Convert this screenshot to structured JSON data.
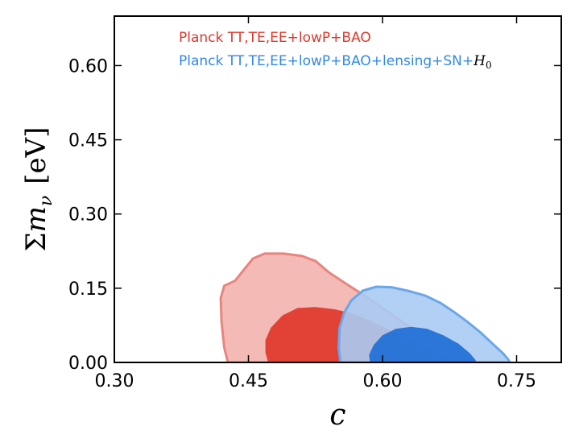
{
  "chart_data": {
    "type": "area",
    "title": "",
    "xlabel": "c",
    "ylabel": "Σm_ν [eV]",
    "ylabel_parts": {
      "sigma": "Σ",
      "m": "m",
      "sub": "ν",
      "unit": "[eV]"
    },
    "xlim": [
      0.3,
      0.8
    ],
    "ylim": [
      0.0,
      0.7
    ],
    "xticks": [
      0.3,
      0.45,
      0.6,
      0.75
    ],
    "xtick_labels": [
      "0.30",
      "0.45",
      "0.60",
      "0.75"
    ],
    "yticks": [
      0.0,
      0.15,
      0.3,
      0.45,
      0.6
    ],
    "ytick_labels": [
      "0.00",
      "0.15",
      "0.30",
      "0.45",
      "0.60"
    ],
    "grid": false,
    "legend_position": "top",
    "series": [
      {
        "name": "Planck TT,TE,EE+lowP+BAO",
        "color_outer": "#f2b2ae",
        "color_inner": "#e0372a",
        "edge_color": "#e8857e",
        "label_color": "#e0372a",
        "contour_95": [
          [
            0.427,
            0.0
          ],
          [
            0.423,
            0.03
          ],
          [
            0.42,
            0.08
          ],
          [
            0.419,
            0.13
          ],
          [
            0.423,
            0.155
          ],
          [
            0.435,
            0.165
          ],
          [
            0.446,
            0.19
          ],
          [
            0.455,
            0.21
          ],
          [
            0.468,
            0.22
          ],
          [
            0.49,
            0.22
          ],
          [
            0.51,
            0.215
          ],
          [
            0.525,
            0.205
          ],
          [
            0.54,
            0.182
          ],
          [
            0.56,
            0.158
          ],
          [
            0.58,
            0.135
          ],
          [
            0.6,
            0.11
          ],
          [
            0.62,
            0.085
          ],
          [
            0.64,
            0.06
          ],
          [
            0.66,
            0.038
          ],
          [
            0.68,
            0.02
          ],
          [
            0.695,
            0.008
          ],
          [
            0.7,
            0.0
          ]
        ],
        "contour_68": [
          [
            0.472,
            0.0
          ],
          [
            0.469,
            0.02
          ],
          [
            0.469,
            0.045
          ],
          [
            0.475,
            0.07
          ],
          [
            0.488,
            0.095
          ],
          [
            0.505,
            0.11
          ],
          [
            0.525,
            0.112
          ],
          [
            0.545,
            0.108
          ],
          [
            0.565,
            0.1
          ],
          [
            0.585,
            0.085
          ],
          [
            0.605,
            0.068
          ],
          [
            0.625,
            0.05
          ],
          [
            0.645,
            0.032
          ],
          [
            0.665,
            0.016
          ],
          [
            0.68,
            0.005
          ],
          [
            0.685,
            0.0
          ]
        ]
      },
      {
        "name": "Planck TT,TE,EE+lowP+BAO+lensing+SN+",
        "name_math": "H",
        "name_math_sub": "0",
        "color_outer": "#a8cbf3",
        "color_inner": "#1f6fd6",
        "edge_color": "#6aa6ea",
        "label_color": "#2f89e8",
        "contour_95": [
          [
            0.553,
            0.0
          ],
          [
            0.551,
            0.03
          ],
          [
            0.552,
            0.07
          ],
          [
            0.557,
            0.1
          ],
          [
            0.565,
            0.125
          ],
          [
            0.578,
            0.145
          ],
          [
            0.593,
            0.153
          ],
          [
            0.61,
            0.152
          ],
          [
            0.628,
            0.145
          ],
          [
            0.648,
            0.135
          ],
          [
            0.665,
            0.12
          ],
          [
            0.68,
            0.102
          ],
          [
            0.695,
            0.082
          ],
          [
            0.71,
            0.06
          ],
          [
            0.723,
            0.038
          ],
          [
            0.735,
            0.018
          ],
          [
            0.741,
            0.005
          ],
          [
            0.742,
            0.0
          ]
        ],
        "contour_68": [
          [
            0.586,
            0.0
          ],
          [
            0.585,
            0.015
          ],
          [
            0.59,
            0.035
          ],
          [
            0.6,
            0.055
          ],
          [
            0.615,
            0.068
          ],
          [
            0.632,
            0.072
          ],
          [
            0.65,
            0.068
          ],
          [
            0.668,
            0.055
          ],
          [
            0.685,
            0.038
          ],
          [
            0.698,
            0.018
          ],
          [
            0.704,
            0.005
          ],
          [
            0.705,
            0.0
          ]
        ]
      }
    ]
  }
}
